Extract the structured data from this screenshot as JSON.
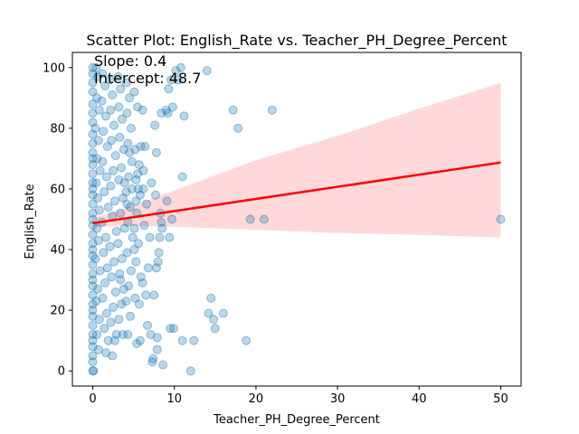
{
  "chart_data": {
    "type": "scatter",
    "title": "Scatter Plot: English_Rate vs. Teacher_PH_Degree_Percent",
    "xlabel": "Teacher_PH_Degree_Percent",
    "ylabel": "English_Rate",
    "xlim": [
      -2.5,
      52.5
    ],
    "ylim": [
      -5,
      105
    ],
    "x_ticks": [
      0,
      10,
      20,
      30,
      40,
      50
    ],
    "y_ticks": [
      0,
      20,
      40,
      60,
      80,
      100
    ],
    "grid": false,
    "colors": {
      "points": "#1f77b4",
      "regression_line": "#ff0000",
      "confidence_band": "#ffcccc"
    },
    "annotations": {
      "slope": "Slope: 0.4",
      "intercept": "Intercept: 48.7"
    },
    "regression": {
      "slope": 0.4,
      "intercept": 48.7,
      "x_range": [
        0,
        50
      ]
    },
    "confidence_band": {
      "x": [
        0,
        5,
        10,
        20,
        30,
        40,
        50
      ],
      "upper": [
        50.3,
        54.5,
        59.5,
        69.5,
        77.5,
        86.5,
        95
      ],
      "lower": [
        47.5,
        47.8,
        47.5,
        46.5,
        45.5,
        44.8,
        44
      ]
    },
    "series": [
      {
        "points": [
          [
            0,
            100
          ],
          [
            0,
            98
          ],
          [
            0,
            95
          ],
          [
            0,
            92
          ],
          [
            0,
            88
          ],
          [
            0,
            85
          ],
          [
            0,
            82
          ],
          [
            0,
            78
          ],
          [
            0,
            75
          ],
          [
            0,
            72
          ],
          [
            0,
            70
          ],
          [
            0,
            68
          ],
          [
            0,
            65
          ],
          [
            0,
            62
          ],
          [
            0,
            60
          ],
          [
            0,
            58
          ],
          [
            0,
            55
          ],
          [
            0,
            52
          ],
          [
            0,
            50
          ],
          [
            0,
            48
          ],
          [
            0,
            45
          ],
          [
            0,
            42
          ],
          [
            0,
            40
          ],
          [
            0,
            38
          ],
          [
            0,
            35
          ],
          [
            0,
            32
          ],
          [
            0,
            30
          ],
          [
            0,
            28
          ],
          [
            0,
            25
          ],
          [
            0,
            22
          ],
          [
            0,
            20
          ],
          [
            0,
            18
          ],
          [
            0,
            15
          ],
          [
            0,
            12
          ],
          [
            0,
            10
          ],
          [
            0,
            8
          ],
          [
            0,
            5
          ],
          [
            0,
            3
          ],
          [
            0,
            0
          ],
          [
            0.1,
            0
          ],
          [
            0.4,
            100
          ],
          [
            0.6,
            97
          ],
          [
            0.5,
            90
          ],
          [
            0.8,
            86
          ],
          [
            0.3,
            80
          ],
          [
            0.7,
            76
          ],
          [
            0.5,
            70
          ],
          [
            0.9,
            66
          ],
          [
            0.4,
            62
          ],
          [
            0.6,
            57
          ],
          [
            0.8,
            53
          ],
          [
            0.5,
            47
          ],
          [
            0.7,
            43
          ],
          [
            0.3,
            37
          ],
          [
            0.9,
            33
          ],
          [
            0.6,
            27
          ],
          [
            0.4,
            23
          ],
          [
            0.8,
            17
          ],
          [
            0.5,
            12
          ],
          [
            0.7,
            7
          ],
          [
            1.2,
            98
          ],
          [
            1.5,
            94
          ],
          [
            1.1,
            89
          ],
          [
            1.6,
            84
          ],
          [
            1.3,
            79
          ],
          [
            1.8,
            74
          ],
          [
            1.2,
            69
          ],
          [
            1.7,
            64
          ],
          [
            1.4,
            59
          ],
          [
            1.9,
            54
          ],
          [
            1.1,
            49
          ],
          [
            1.6,
            44
          ],
          [
            1.3,
            39
          ],
          [
            1.8,
            34
          ],
          [
            1.5,
            29
          ],
          [
            1.2,
            24
          ],
          [
            1.7,
            19
          ],
          [
            1.4,
            14
          ],
          [
            1.9,
            10
          ],
          [
            1.6,
            6
          ],
          [
            2.1,
            96
          ],
          [
            2.4,
            91
          ],
          [
            2.2,
            86
          ],
          [
            2.6,
            81
          ],
          [
            2.3,
            76
          ],
          [
            2.8,
            71
          ],
          [
            2.5,
            66
          ],
          [
            2.2,
            61
          ],
          [
            2.7,
            56
          ],
          [
            2.4,
            51
          ],
          [
            2.9,
            46
          ],
          [
            2.1,
            41
          ],
          [
            2.6,
            36
          ],
          [
            2.3,
            31
          ],
          [
            2.8,
            26
          ],
          [
            2.5,
            21
          ],
          [
            2.2,
            16
          ],
          [
            2.7,
            10
          ],
          [
            2.4,
            5
          ],
          [
            2.9,
            12
          ],
          [
            3.1,
            97
          ],
          [
            3.4,
            93
          ],
          [
            3.2,
            87
          ],
          [
            3.6,
            83
          ],
          [
            3.3,
            77
          ],
          [
            3.8,
            73
          ],
          [
            3.5,
            67
          ],
          [
            3.2,
            63
          ],
          [
            3.7,
            57
          ],
          [
            3.4,
            52
          ],
          [
            3.9,
            47
          ],
          [
            3.1,
            42
          ],
          [
            3.6,
            37
          ],
          [
            3.3,
            32
          ],
          [
            3.8,
            27
          ],
          [
            3.5,
            22
          ],
          [
            3.2,
            17
          ],
          [
            3.7,
            12
          ],
          [
            3.4,
            30
          ],
          [
            3.9,
            62
          ],
          [
            4.1,
            95
          ],
          [
            4.5,
            90
          ],
          [
            4.2,
            85
          ],
          [
            4.7,
            80
          ],
          [
            4.3,
            75
          ],
          [
            4.8,
            69
          ],
          [
            4.4,
            64
          ],
          [
            4.1,
            59
          ],
          [
            4.6,
            54
          ],
          [
            4.3,
            49
          ],
          [
            4.9,
            44
          ],
          [
            4.2,
            39
          ],
          [
            4.7,
            33
          ],
          [
            4.4,
            28
          ],
          [
            4.1,
            23
          ],
          [
            4.6,
            18
          ],
          [
            4.3,
            12
          ],
          [
            4.8,
            60
          ],
          [
            4.5,
            72
          ],
          [
            4.2,
            55
          ],
          [
            5.1,
            92
          ],
          [
            5.5,
            87
          ],
          [
            5.2,
            73
          ],
          [
            5.7,
            68
          ],
          [
            5.3,
            63
          ],
          [
            5.8,
            58
          ],
          [
            5.4,
            52
          ],
          [
            5.1,
            47
          ],
          [
            5.6,
            42
          ],
          [
            5.3,
            36
          ],
          [
            5.9,
            31
          ],
          [
            5.2,
            24
          ],
          [
            5.7,
            22
          ],
          [
            5.4,
            9
          ],
          [
            5.8,
            10
          ],
          [
            5.1,
            40
          ],
          [
            5.6,
            60
          ],
          [
            5.3,
            56
          ],
          [
            5.9,
            74
          ],
          [
            5.5,
            65
          ],
          [
            6.1,
            86
          ],
          [
            6.4,
            74
          ],
          [
            6.2,
            66
          ],
          [
            6.6,
            55
          ],
          [
            6.3,
            48
          ],
          [
            6.8,
            34
          ],
          [
            6.1,
            29
          ],
          [
            6.5,
            25
          ],
          [
            6.2,
            60
          ],
          [
            6.7,
            15
          ],
          [
            7.0,
            44
          ],
          [
            7.2,
            62
          ],
          [
            7.4,
            4
          ],
          [
            7.6,
            81
          ],
          [
            7.8,
            72
          ],
          [
            7.5,
            25
          ],
          [
            7.1,
            12
          ],
          [
            7.9,
            11
          ],
          [
            7.3,
            3
          ],
          [
            7.7,
            58
          ],
          [
            8.0,
            36
          ],
          [
            8.2,
            44
          ],
          [
            8.4,
            85
          ],
          [
            7.9,
            7
          ],
          [
            8.1,
            39
          ],
          [
            8.6,
            2
          ],
          [
            8.5,
            47
          ],
          [
            8.3,
            52
          ],
          [
            7.8,
            34
          ],
          [
            8.4,
            49
          ],
          [
            9.0,
            86
          ],
          [
            9.2,
            85
          ],
          [
            9.5,
            14
          ],
          [
            9.7,
            50
          ],
          [
            9.9,
            14
          ],
          [
            9.3,
            93
          ],
          [
            9.6,
            96
          ],
          [
            9.8,
            87
          ],
          [
            9.4,
            44
          ],
          [
            9.1,
            56
          ],
          [
            10.2,
            99
          ],
          [
            10.5,
            96
          ],
          [
            10.8,
            100
          ],
          [
            11.0,
            64
          ],
          [
            11.2,
            84
          ],
          [
            11.0,
            10
          ],
          [
            12.0,
            0
          ],
          [
            12.4,
            10
          ],
          [
            14.0,
            99
          ],
          [
            14.2,
            19
          ],
          [
            14.5,
            24
          ],
          [
            14.8,
            17
          ],
          [
            15.0,
            14
          ],
          [
            16.0,
            19
          ],
          [
            17.2,
            86
          ],
          [
            17.8,
            80
          ],
          [
            18.8,
            10
          ],
          [
            19.3,
            50
          ],
          [
            21.0,
            50
          ],
          [
            22.0,
            86
          ],
          [
            50.0,
            50
          ]
        ]
      }
    ]
  }
}
